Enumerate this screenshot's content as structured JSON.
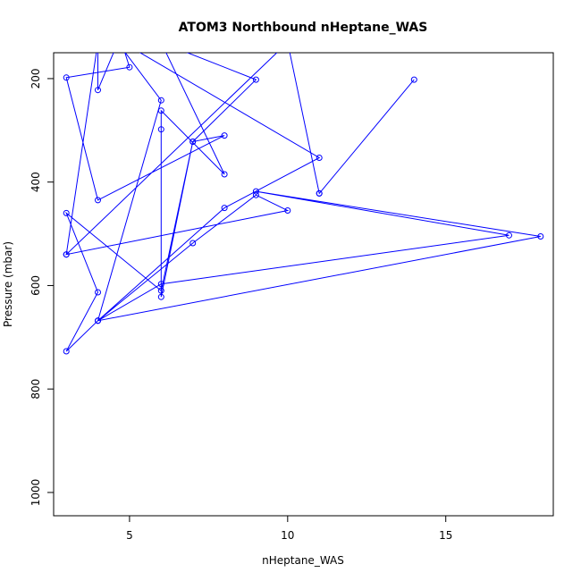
{
  "chart_data": {
    "type": "line",
    "title": "ATOM3 Northbound nHeptane_WAS",
    "xlabel": "nHeptane_WAS",
    "ylabel": "Pressure (mbar)",
    "xlim": [
      2.6,
      18.4
    ],
    "ylim": [
      1045,
      150
    ],
    "y_reversed": true,
    "grid": false,
    "x_ticks": [
      5,
      10,
      15
    ],
    "y_ticks": [
      200,
      400,
      600,
      800,
      1000
    ],
    "series": [
      {
        "color": "#0000ff",
        "points": [
          [
            3,
            540
          ],
          [
            4,
            130
          ],
          [
            4,
            222
          ],
          [
            4.7,
            120
          ],
          [
            5,
            178
          ],
          [
            3,
            198
          ],
          [
            4,
            435
          ],
          [
            8,
            310
          ],
          [
            7,
            322
          ],
          [
            9,
            202
          ],
          [
            6,
            130
          ],
          [
            8,
            385
          ],
          [
            6,
            262
          ],
          [
            6,
            298
          ],
          [
            6,
            622
          ],
          [
            7,
            322
          ],
          [
            6,
            610
          ],
          [
            3,
            460
          ],
          [
            4,
            613
          ],
          [
            3,
            727
          ],
          [
            4,
            668
          ],
          [
            18,
            505
          ],
          [
            9,
            418
          ],
          [
            17,
            503
          ],
          [
            6,
            597
          ],
          [
            4,
            668
          ],
          [
            8,
            450
          ],
          [
            11,
            353
          ],
          [
            4.5,
            120
          ],
          [
            6,
            242
          ],
          [
            4,
            668
          ],
          [
            7,
            518
          ],
          [
            9,
            425
          ],
          [
            10,
            455
          ],
          [
            3,
            540
          ],
          [
            10,
            130
          ],
          [
            11,
            422
          ],
          [
            14,
            202
          ],
          [
            11,
            422
          ]
        ]
      }
    ]
  }
}
